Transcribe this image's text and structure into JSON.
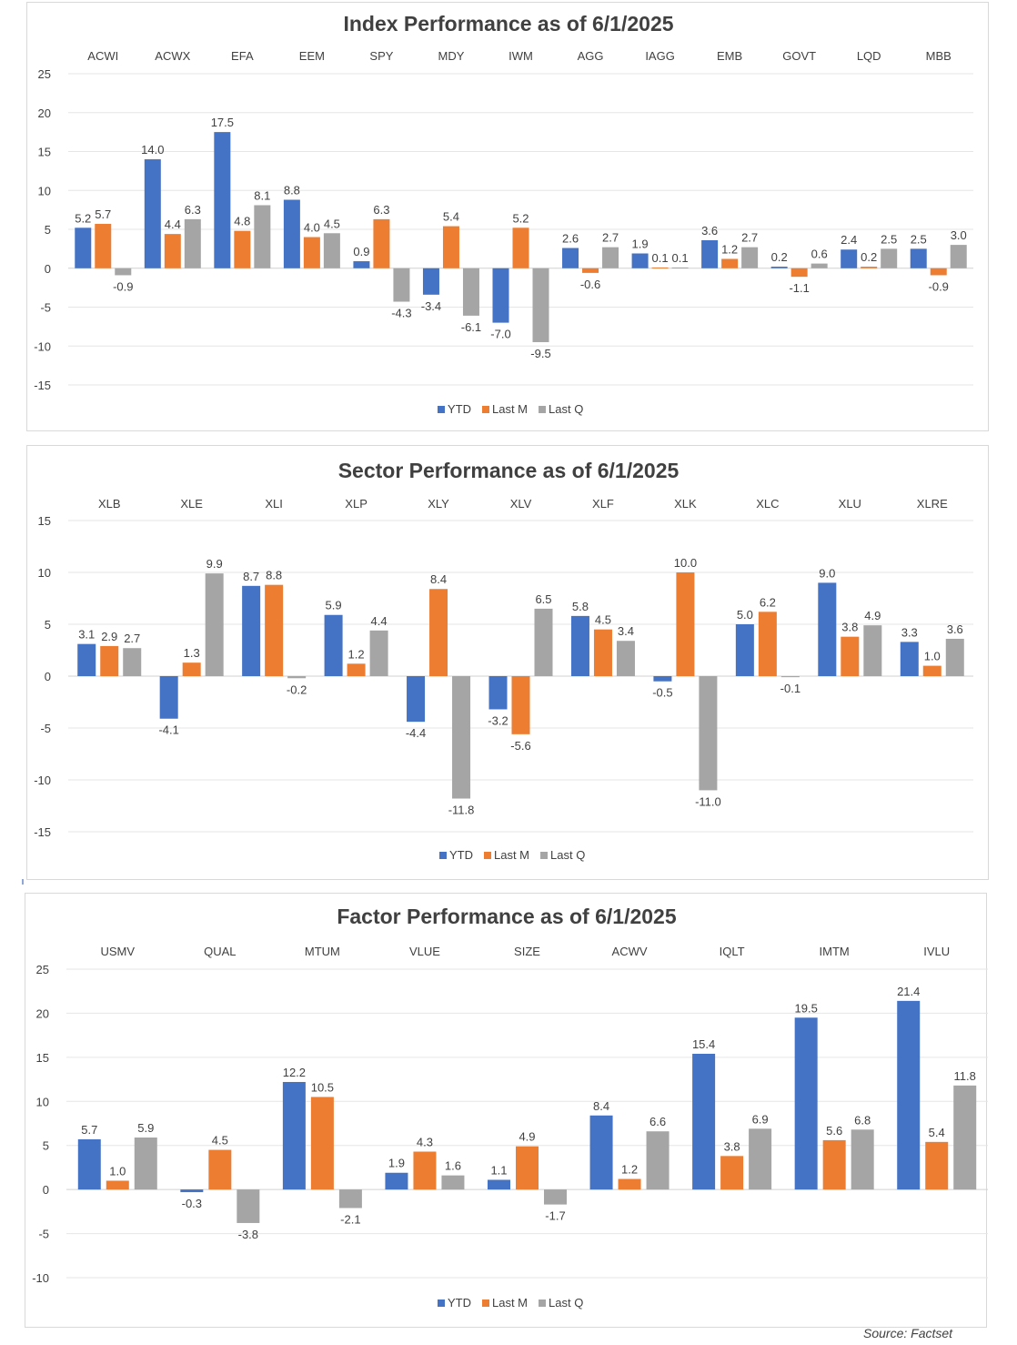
{
  "colors": {
    "YTD": "#4472c4",
    "Last M": "#ed7d31",
    "Last Q": "#a5a5a5"
  },
  "source": "Source: Factset",
  "chart_data": [
    {
      "type": "bar",
      "title": "Index Performance as of 6/1/2025",
      "categories": [
        "ACWI",
        "ACWX",
        "EFA",
        "EEM",
        "SPY",
        "MDY",
        "IWM",
        "AGG",
        "IAGG",
        "EMB",
        "GOVT",
        "LQD",
        "MBB"
      ],
      "ylim": [
        -15,
        25
      ],
      "yticks": [
        "25",
        "20",
        "15",
        "10",
        "5",
        "0",
        "-5",
        "-10",
        "-15"
      ],
      "grid": true,
      "legend_position": "bottom",
      "series": [
        {
          "name": "YTD",
          "values": [
            5.2,
            14.0,
            17.5,
            8.8,
            0.9,
            -3.4,
            -7.0,
            2.6,
            1.9,
            3.6,
            0.2,
            2.4,
            2.5
          ],
          "labels": [
            "5.2",
            "14.0",
            "17.5",
            "8.8",
            "0.9",
            "-3.4",
            "-7.0",
            "2.6",
            "1.9",
            "3.6",
            "0.2",
            "2.4",
            "2.5"
          ]
        },
        {
          "name": "Last M",
          "values": [
            5.7,
            4.4,
            4.8,
            4.0,
            6.3,
            5.4,
            5.2,
            -0.6,
            0.1,
            1.2,
            -1.1,
            0.2,
            -0.9
          ],
          "labels": [
            "5.7",
            "4.4",
            "4.8",
            "4.0",
            "6.3",
            "5.4",
            "5.2",
            "-0.6",
            "0.1",
            "1.2",
            "-1.1",
            "0.2",
            "-0.9"
          ]
        },
        {
          "name": "Last Q",
          "values": [
            -0.9,
            6.3,
            8.1,
            4.5,
            -4.3,
            -6.1,
            -9.5,
            2.7,
            0.1,
            2.7,
            0.6,
            2.5,
            3.0
          ],
          "labels": [
            "-0.9",
            "6.3",
            "8.1",
            "4.5",
            "-4.3",
            "-6.1",
            "-9.5",
            "2.7",
            "0.1",
            "2.7",
            "0.6",
            "2.5",
            "3.0"
          ]
        }
      ]
    },
    {
      "type": "bar",
      "title": "Sector Performance as of 6/1/2025",
      "categories": [
        "XLB",
        "XLE",
        "XLI",
        "XLP",
        "XLY",
        "XLV",
        "XLF",
        "XLK",
        "XLC",
        "XLU",
        "XLRE"
      ],
      "ylim": [
        -15,
        15
      ],
      "yticks": [
        "15",
        "10",
        "5",
        "0",
        "-5",
        "-10",
        "-15"
      ],
      "grid": true,
      "legend_position": "bottom",
      "series": [
        {
          "name": "YTD",
          "values": [
            3.1,
            -4.1,
            8.7,
            5.9,
            -4.4,
            -3.2,
            5.8,
            -0.5,
            5.0,
            9.0,
            3.3
          ],
          "labels": [
            "3.1",
            "-4.1",
            "8.7",
            "5.9",
            "-4.4",
            "-3.2",
            "5.8",
            "-0.5",
            "5.0",
            "9.0",
            "3.3"
          ]
        },
        {
          "name": "Last M",
          "values": [
            2.9,
            1.3,
            8.8,
            1.2,
            8.4,
            -5.6,
            4.5,
            10.0,
            6.2,
            3.8,
            1.0
          ],
          "labels": [
            "2.9",
            "1.3",
            "8.8",
            "1.2",
            "8.4",
            "-5.6",
            "4.5",
            "10.0",
            "6.2",
            "3.8",
            "1.0"
          ]
        },
        {
          "name": "Last Q",
          "values": [
            2.7,
            9.9,
            -0.2,
            4.4,
            -11.8,
            6.5,
            3.4,
            -11.0,
            -0.1,
            4.9,
            3.6
          ],
          "labels": [
            "2.7",
            "9.9",
            "-0.2",
            "4.4",
            "-11.8",
            "6.5",
            "3.4",
            "-11.0",
            "-0.1",
            "4.9",
            "3.6"
          ]
        }
      ]
    },
    {
      "type": "bar",
      "title": "Factor Performance as of 6/1/2025",
      "categories": [
        "USMV",
        "QUAL",
        "MTUM",
        "VLUE",
        "SIZE",
        "ACWV",
        "IQLT",
        "IMTM",
        "IVLU"
      ],
      "ylim": [
        -10,
        25
      ],
      "yticks": [
        "25",
        "20",
        "15",
        "10",
        "5",
        "0",
        "-5",
        "-10"
      ],
      "grid": true,
      "legend_position": "bottom",
      "series": [
        {
          "name": "YTD",
          "values": [
            5.7,
            -0.3,
            12.2,
            1.9,
            1.1,
            8.4,
            15.4,
            19.5,
            21.4
          ],
          "labels": [
            "5.7",
            "-0.3",
            "12.2",
            "1.9",
            "1.1",
            "8.4",
            "15.4",
            "19.5",
            "21.4"
          ]
        },
        {
          "name": "Last M",
          "values": [
            1.0,
            4.5,
            10.5,
            4.3,
            4.9,
            1.2,
            3.8,
            5.6,
            5.4
          ],
          "labels": [
            "1.0",
            "4.5",
            "10.5",
            "4.3",
            "4.9",
            "1.2",
            "3.8",
            "5.6",
            "5.4"
          ]
        },
        {
          "name": "Last Q",
          "values": [
            5.9,
            -3.8,
            -2.1,
            1.6,
            -1.7,
            6.6,
            6.9,
            6.8,
            11.8
          ],
          "labels": [
            "5.9",
            "-3.8",
            "-2.1",
            "1.6",
            "-1.7",
            "6.6",
            "6.9",
            "6.8",
            "11.8"
          ]
        }
      ]
    }
  ]
}
